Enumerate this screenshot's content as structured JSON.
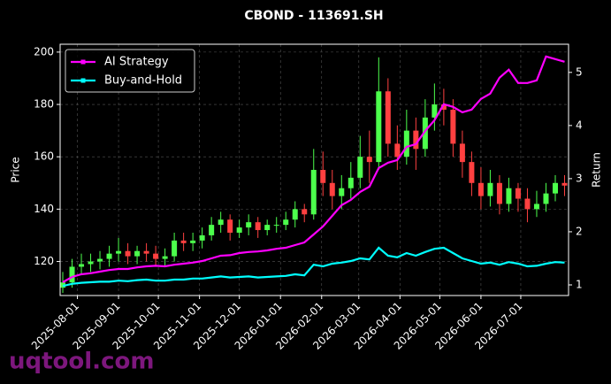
{
  "chart_data": {
    "type": "candlestick",
    "title": "CBOND - 113691.SH",
    "ylabel": "Price",
    "y2label": "Return",
    "watermark": "uqtool.com",
    "x": [
      "2025-07-21",
      "2025-07-28",
      "2025-08-04",
      "2025-08-11",
      "2025-08-18",
      "2025-08-25",
      "2025-09-01",
      "2025-09-08",
      "2025-09-15",
      "2025-09-22",
      "2025-09-29",
      "2025-10-06",
      "2025-10-13",
      "2025-10-20",
      "2025-10-27",
      "2025-11-03",
      "2025-11-10",
      "2025-11-17",
      "2025-11-24",
      "2025-12-01",
      "2025-12-08",
      "2025-12-15",
      "2025-12-22",
      "2025-12-29",
      "2026-01-05",
      "2026-01-12",
      "2026-01-19",
      "2026-01-26",
      "2026-02-02",
      "2026-02-09",
      "2026-02-16",
      "2026-02-23",
      "2026-03-02",
      "2026-03-09",
      "2026-03-16",
      "2026-03-23",
      "2026-03-30",
      "2026-04-06",
      "2026-04-13",
      "2026-04-20",
      "2026-04-27",
      "2026-05-04",
      "2026-05-11",
      "2026-05-18",
      "2026-05-25",
      "2026-06-01",
      "2026-06-08",
      "2026-06-15",
      "2026-06-22",
      "2026-06-29",
      "2026-07-06",
      "2026-07-13",
      "2026-07-20",
      "2026-07-27",
      "2026-08-03"
    ],
    "open": [
      110,
      112,
      118,
      119,
      120,
      121,
      123,
      124,
      122,
      124,
      123,
      121,
      122,
      128,
      127,
      128,
      130,
      134,
      136,
      131,
      133,
      135,
      132,
      134,
      134,
      136,
      140,
      138,
      155,
      150,
      145,
      148,
      152,
      160,
      158,
      185,
      165,
      160,
      170,
      163,
      175,
      180,
      178,
      165,
      158,
      150,
      145,
      150,
      142,
      148,
      144,
      140,
      142,
      146,
      150
    ],
    "high": [
      116,
      121,
      123,
      123,
      124,
      126,
      129,
      127,
      126,
      127,
      126,
      125,
      131,
      131,
      131,
      133,
      137,
      139,
      138,
      136,
      138,
      137,
      136,
      137,
      139,
      143,
      142,
      163,
      162,
      155,
      153,
      158,
      168,
      170,
      198,
      190,
      172,
      178,
      175,
      182,
      188,
      186,
      182,
      170,
      162,
      156,
      155,
      153,
      152,
      150,
      148,
      147,
      150,
      153,
      153
    ],
    "low": [
      108,
      110,
      115,
      116,
      117,
      118,
      120,
      119,
      119,
      120,
      118,
      118,
      120,
      124,
      124,
      125,
      128,
      131,
      128,
      129,
      130,
      129,
      130,
      131,
      132,
      133,
      135,
      136,
      145,
      140,
      140,
      144,
      148,
      150,
      155,
      160,
      155,
      157,
      155,
      160,
      170,
      172,
      160,
      152,
      145,
      140,
      141,
      138,
      139,
      139,
      135,
      137,
      139,
      143,
      145
    ],
    "close": [
      112,
      118,
      119,
      120,
      121,
      123,
      124,
      122,
      124,
      123,
      121,
      122,
      128,
      127,
      128,
      130,
      134,
      136,
      131,
      133,
      135,
      132,
      134,
      134,
      136,
      140,
      138,
      155,
      150,
      145,
      148,
      152,
      160,
      158,
      185,
      165,
      160,
      170,
      163,
      175,
      180,
      178,
      165,
      158,
      150,
      145,
      150,
      142,
      148,
      144,
      140,
      142,
      146,
      150,
      149
    ],
    "up_color": "#4cff4c",
    "down_color": "#ff4040",
    "series": [
      {
        "name": "AI Strategy",
        "color": "#ff00ff",
        "axis": "y2",
        "values": [
          1.05,
          1.15,
          1.2,
          1.22,
          1.25,
          1.28,
          1.3,
          1.3,
          1.33,
          1.35,
          1.36,
          1.35,
          1.38,
          1.4,
          1.42,
          1.45,
          1.5,
          1.55,
          1.56,
          1.6,
          1.62,
          1.63,
          1.65,
          1.68,
          1.7,
          1.75,
          1.8,
          1.95,
          2.1,
          2.3,
          2.5,
          2.6,
          2.75,
          2.85,
          3.2,
          3.3,
          3.35,
          3.6,
          3.65,
          3.9,
          4.1,
          4.4,
          4.35,
          4.25,
          4.3,
          4.5,
          4.6,
          4.9,
          5.05,
          4.8,
          4.8,
          4.85,
          5.3,
          5.25,
          5.2
        ]
      },
      {
        "name": "Buy-and-Hold",
        "color": "#00ffff",
        "axis": "y2",
        "values": [
          0.98,
          1.02,
          1.04,
          1.05,
          1.06,
          1.06,
          1.08,
          1.07,
          1.09,
          1.1,
          1.08,
          1.08,
          1.1,
          1.1,
          1.12,
          1.12,
          1.14,
          1.16,
          1.14,
          1.15,
          1.16,
          1.14,
          1.15,
          1.16,
          1.17,
          1.2,
          1.18,
          1.38,
          1.35,
          1.4,
          1.42,
          1.45,
          1.5,
          1.48,
          1.7,
          1.55,
          1.52,
          1.6,
          1.55,
          1.62,
          1.68,
          1.7,
          1.6,
          1.5,
          1.45,
          1.4,
          1.42,
          1.38,
          1.43,
          1.4,
          1.35,
          1.36,
          1.4,
          1.43,
          1.42
        ]
      }
    ],
    "xlim": [
      "2025-07-19",
      "2026-08-06"
    ],
    "xticks": [
      "2025-08-01",
      "2025-09-01",
      "2025-10-01",
      "2025-11-01",
      "2025-12-01",
      "2026-01-01",
      "2026-02-01",
      "2026-03-01",
      "2026-04-01",
      "2026-05-01",
      "2026-06-01",
      "2026-07-01"
    ],
    "ylim": [
      107,
      203
    ],
    "yticks": [
      120,
      140,
      160,
      180,
      200
    ],
    "y2lim": [
      0.8,
      5.53
    ],
    "y2ticks": [
      1,
      2,
      3,
      4,
      5
    ],
    "grid": true,
    "legend": "upper left"
  }
}
